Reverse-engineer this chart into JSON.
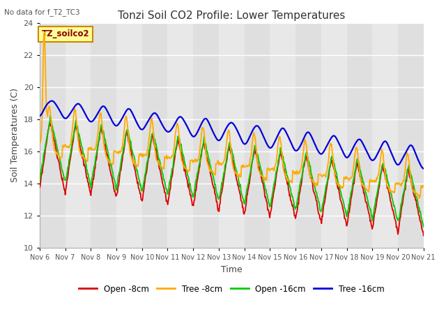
{
  "title": "Tonzi Soil CO2 Profile: Lower Temperatures",
  "subtitle": "No data for f_T2_TC3",
  "xlabel": "Time",
  "ylabel": "Soil Temperatures (C)",
  "ylim": [
    10,
    24
  ],
  "yticks": [
    10,
    12,
    14,
    16,
    18,
    20,
    22,
    24
  ],
  "legend_labels": [
    "Open -8cm",
    "Tree -8cm",
    "Open -16cm",
    "Tree -16cm"
  ],
  "legend_colors": [
    "#dd0000",
    "#ffaa00",
    "#00cc00",
    "#0000dd"
  ],
  "box_label": "TZ_soilco2",
  "box_color": "#ffff99",
  "box_border": "#cc8800",
  "plot_bg": "#e8e8e8",
  "figsize": [
    6.4,
    4.8
  ],
  "dpi": 100
}
